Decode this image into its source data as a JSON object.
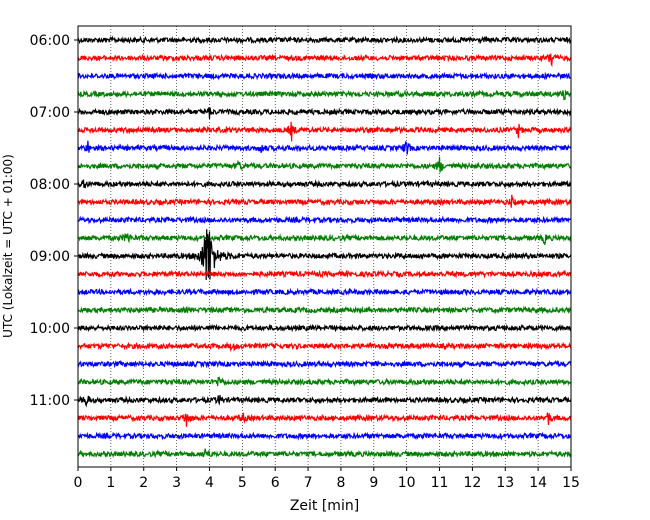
{
  "chart_data": {
    "type": "line",
    "subtype": "helicorder",
    "xlabel": "Zeit  [min]",
    "ylabel": "UTC (Lokalzeit = UTC + 01:00)",
    "xlim": [
      0,
      15
    ],
    "x_ticks": [
      "0",
      "1",
      "2",
      "3",
      "4",
      "5",
      "6",
      "7",
      "8",
      "9",
      "10",
      "11",
      "12",
      "13",
      "14",
      "15"
    ],
    "y_ticks": [
      "06:00",
      "07:00",
      "08:00",
      "09:00",
      "10:00",
      "11:00"
    ],
    "grid": "vertical-dotted",
    "trace_minutes": 15,
    "color_cycle": [
      "#000000",
      "#ff0000",
      "#0000ff",
      "#008000"
    ],
    "traces": [
      {
        "start": "06:00",
        "color": "#000000",
        "events": []
      },
      {
        "start": "06:15",
        "color": "#ff0000",
        "events": [
          {
            "t": 14.4,
            "amp": 11
          }
        ]
      },
      {
        "start": "06:30",
        "color": "#0000ff",
        "events": []
      },
      {
        "start": "06:45",
        "color": "#008000",
        "events": [
          {
            "t": 14.8,
            "amp": 5
          }
        ]
      },
      {
        "start": "07:00",
        "color": "#000000",
        "events": [
          {
            "t": 4.0,
            "amp": 5
          }
        ]
      },
      {
        "start": "07:15",
        "color": "#ff0000",
        "events": [
          {
            "t": 6.5,
            "amp": 9
          },
          {
            "t": 13.4,
            "amp": 6
          }
        ]
      },
      {
        "start": "07:30",
        "color": "#0000ff",
        "events": [
          {
            "t": 0.3,
            "amp": 6
          },
          {
            "t": 5.6,
            "amp": 5
          },
          {
            "t": 10.0,
            "amp": 9
          }
        ]
      },
      {
        "start": "07:45",
        "color": "#008000",
        "events": [
          {
            "t": 4.9,
            "amp": 6
          },
          {
            "t": 11.0,
            "amp": 9
          }
        ]
      },
      {
        "start": "08:00",
        "color": "#000000",
        "events": [
          {
            "t": 0.2,
            "amp": 4
          }
        ]
      },
      {
        "start": "08:15",
        "color": "#ff0000",
        "events": [
          {
            "t": 13.2,
            "amp": 5
          }
        ]
      },
      {
        "start": "08:30",
        "color": "#0000ff",
        "events": []
      },
      {
        "start": "08:45",
        "color": "#008000",
        "events": [
          {
            "t": 1.5,
            "amp": 8
          },
          {
            "t": 14.2,
            "amp": 5
          }
        ]
      },
      {
        "start": "09:00",
        "color": "#000000",
        "events": [
          {
            "t": 3.95,
            "amp": 40
          }
        ]
      },
      {
        "start": "09:15",
        "color": "#ff0000",
        "events": []
      },
      {
        "start": "09:30",
        "color": "#0000ff",
        "events": []
      },
      {
        "start": "09:45",
        "color": "#008000",
        "events": []
      },
      {
        "start": "10:00",
        "color": "#000000",
        "events": []
      },
      {
        "start": "10:15",
        "color": "#ff0000",
        "events": [
          {
            "t": 4.7,
            "amp": 5
          }
        ]
      },
      {
        "start": "10:30",
        "color": "#0000ff",
        "events": []
      },
      {
        "start": "10:45",
        "color": "#008000",
        "events": [
          {
            "t": 4.3,
            "amp": 7
          }
        ]
      },
      {
        "start": "11:00",
        "color": "#000000",
        "events": [
          {
            "t": 0.25,
            "amp": 7
          },
          {
            "t": 4.3,
            "amp": 5
          }
        ]
      },
      {
        "start": "11:15",
        "color": "#ff0000",
        "events": [
          {
            "t": 3.3,
            "amp": 9
          },
          {
            "t": 5.0,
            "amp": 6
          },
          {
            "t": 14.3,
            "amp": 8
          }
        ]
      },
      {
        "start": "11:30",
        "color": "#0000ff",
        "events": []
      },
      {
        "start": "11:45",
        "color": "#008000",
        "events": [
          {
            "t": 3.9,
            "amp": 9
          }
        ]
      }
    ]
  }
}
